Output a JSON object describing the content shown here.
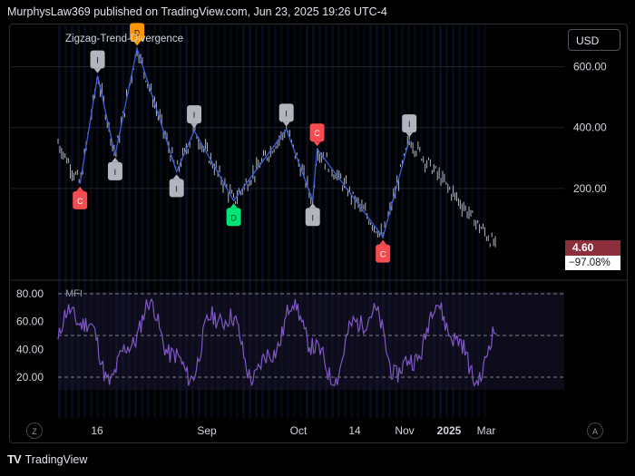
{
  "header": {
    "publisher_text": "MurphysLaw369 published on TradingView.com, Jun 23, 2025 19:26 UTC-4"
  },
  "toolbar": {
    "currency": "USD"
  },
  "indicator_main": {
    "name": "Zigzag-Trend-Divergence"
  },
  "indicator_sub": {
    "name": "MFI"
  },
  "price": {
    "last": "4.60",
    "change_pct": "−97.08%"
  },
  "axis_buttons": {
    "left": "Z",
    "right": "A"
  },
  "footer": {
    "brand": "TradingView"
  },
  "colors": {
    "zigzag": "#3a5fd9",
    "mfi": "#7e57c2",
    "label_C": "#f44c50",
    "label_D_bull": "#00e676",
    "label_D_bear": "#ff9800",
    "label_I": "#b2b5be"
  },
  "chart_data": [
    {
      "type": "line",
      "name": "price",
      "y_ticks": [
        "600.00",
        "400.00",
        "200.00"
      ],
      "x_ticks": [
        "16",
        "Sep",
        "Oct",
        "14",
        "Nov",
        "2025",
        "Mar"
      ],
      "zigzag": [
        {
          "x": 0.05,
          "y": 215,
          "label": "C"
        },
        {
          "x": 0.09,
          "y": 570,
          "label": "I"
        },
        {
          "x": 0.13,
          "y": 310,
          "label": "I"
        },
        {
          "x": 0.18,
          "y": 660,
          "label": "D"
        },
        {
          "x": 0.27,
          "y": 255,
          "label": "I"
        },
        {
          "x": 0.31,
          "y": 390,
          "label": "I"
        },
        {
          "x": 0.4,
          "y": 160,
          "label": "D"
        },
        {
          "x": 0.52,
          "y": 395,
          "label": "I"
        },
        {
          "x": 0.58,
          "y": 160,
          "label": "I"
        },
        {
          "x": 0.59,
          "y": 330,
          "label": "C"
        },
        {
          "x": 0.74,
          "y": 40,
          "label": "C"
        },
        {
          "x": 0.8,
          "y": 360,
          "label": "I"
        }
      ],
      "last_value": 4.6
    },
    {
      "type": "line",
      "name": "MFI",
      "y_ticks": [
        "80.00",
        "60.00",
        "40.00",
        "20.00"
      ],
      "ylim": [
        10,
        85
      ],
      "levels": [
        80,
        50,
        20
      ]
    }
  ]
}
